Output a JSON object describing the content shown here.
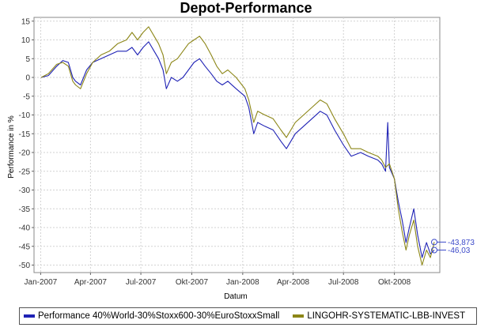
{
  "chart_data": {
    "type": "line",
    "title": "Depot-Performance",
    "xlabel": "Datum",
    "ylabel": "Performance in %",
    "x_tick_labels": [
      "Jan-2007",
      "Apr-2007",
      "Jul-2007",
      "Okt-2007",
      "Jan-2008",
      "Apr-2008",
      "Jul-2008",
      "Okt-2008"
    ],
    "y_ticks": [
      15,
      10,
      5,
      0,
      -5,
      -10,
      -15,
      -20,
      -25,
      -30,
      -35,
      -40,
      -45,
      -50
    ],
    "ylim": [
      -52,
      16
    ],
    "grid": true,
    "legend_position": "bottom",
    "series": [
      {
        "name": "Performance 40%World-30%Stoxx600-30%EuroStoxxSmall",
        "color": "#1f22b5",
        "end_label": "-46,03",
        "points": [
          [
            "2007-01-02",
            0
          ],
          [
            "2007-01-15",
            0.5
          ],
          [
            "2007-01-30",
            3
          ],
          [
            "2007-02-10",
            4.5
          ],
          [
            "2007-02-20",
            4
          ],
          [
            "2007-02-28",
            0
          ],
          [
            "2007-03-05",
            -1
          ],
          [
            "2007-03-14",
            -2
          ],
          [
            "2007-03-25",
            2
          ],
          [
            "2007-04-05",
            4
          ],
          [
            "2007-04-20",
            5
          ],
          [
            "2007-05-05",
            6
          ],
          [
            "2007-05-20",
            7
          ],
          [
            "2007-06-05",
            7
          ],
          [
            "2007-06-15",
            8
          ],
          [
            "2007-06-25",
            6
          ],
          [
            "2007-07-05",
            8
          ],
          [
            "2007-07-15",
            9.5
          ],
          [
            "2007-07-25",
            7
          ],
          [
            "2007-08-02",
            5
          ],
          [
            "2007-08-10",
            2
          ],
          [
            "2007-08-16",
            -3
          ],
          [
            "2007-08-25",
            0
          ],
          [
            "2007-09-05",
            -1
          ],
          [
            "2007-09-15",
            0
          ],
          [
            "2007-09-25",
            2
          ],
          [
            "2007-10-05",
            4
          ],
          [
            "2007-10-15",
            5
          ],
          [
            "2007-10-25",
            3
          ],
          [
            "2007-11-05",
            1
          ],
          [
            "2007-11-15",
            -1
          ],
          [
            "2007-11-25",
            -2
          ],
          [
            "2007-12-05",
            -1
          ],
          [
            "2007-12-20",
            -3
          ],
          [
            "2008-01-05",
            -5
          ],
          [
            "2008-01-12",
            -8
          ],
          [
            "2008-01-21",
            -15
          ],
          [
            "2008-01-28",
            -12
          ],
          [
            "2008-02-10",
            -13
          ],
          [
            "2008-02-25",
            -14
          ],
          [
            "2008-03-10",
            -17
          ],
          [
            "2008-03-20",
            -19
          ],
          [
            "2008-04-05",
            -15
          ],
          [
            "2008-04-20",
            -13
          ],
          [
            "2008-05-05",
            -11
          ],
          [
            "2008-05-20",
            -9
          ],
          [
            "2008-06-01",
            -10
          ],
          [
            "2008-06-15",
            -14
          ],
          [
            "2008-07-01",
            -18
          ],
          [
            "2008-07-15",
            -21
          ],
          [
            "2008-08-01",
            -20
          ],
          [
            "2008-08-15",
            -21
          ],
          [
            "2008-09-01",
            -22
          ],
          [
            "2008-09-08",
            -23
          ],
          [
            "2008-09-15",
            -25
          ],
          [
            "2008-09-19",
            -12
          ],
          [
            "2008-09-22",
            -24
          ],
          [
            "2008-10-01",
            -27
          ],
          [
            "2008-10-08",
            -33
          ],
          [
            "2008-10-15",
            -38
          ],
          [
            "2008-10-22",
            -44
          ],
          [
            "2008-10-28",
            -40
          ],
          [
            "2008-11-05",
            -35
          ],
          [
            "2008-11-12",
            -42
          ],
          [
            "2008-11-20",
            -48
          ],
          [
            "2008-11-28",
            -44
          ],
          [
            "2008-12-05",
            -47
          ],
          [
            "2008-12-12",
            -46
          ]
        ]
      },
      {
        "name": "LINGOHR-SYSTEMATIC-LBB-INVEST",
        "color": "#8c8617",
        "end_label": "-43,873",
        "points": [
          [
            "2007-01-02",
            0
          ],
          [
            "2007-01-15",
            1
          ],
          [
            "2007-01-30",
            3.5
          ],
          [
            "2007-02-10",
            4
          ],
          [
            "2007-02-20",
            3
          ],
          [
            "2007-02-28",
            -1
          ],
          [
            "2007-03-05",
            -2
          ],
          [
            "2007-03-14",
            -3
          ],
          [
            "2007-03-25",
            1
          ],
          [
            "2007-04-05",
            4
          ],
          [
            "2007-04-20",
            6
          ],
          [
            "2007-05-05",
            7
          ],
          [
            "2007-05-20",
            9
          ],
          [
            "2007-06-05",
            10
          ],
          [
            "2007-06-15",
            12
          ],
          [
            "2007-06-25",
            10
          ],
          [
            "2007-07-05",
            12
          ],
          [
            "2007-07-15",
            13.5
          ],
          [
            "2007-07-25",
            11
          ],
          [
            "2007-08-02",
            9
          ],
          [
            "2007-08-10",
            6
          ],
          [
            "2007-08-16",
            1
          ],
          [
            "2007-08-25",
            4
          ],
          [
            "2007-09-05",
            5
          ],
          [
            "2007-09-15",
            7
          ],
          [
            "2007-09-25",
            9
          ],
          [
            "2007-10-05",
            10
          ],
          [
            "2007-10-15",
            11
          ],
          [
            "2007-10-25",
            9
          ],
          [
            "2007-11-05",
            6
          ],
          [
            "2007-11-15",
            3
          ],
          [
            "2007-11-25",
            1
          ],
          [
            "2007-12-05",
            2
          ],
          [
            "2007-12-20",
            0
          ],
          [
            "2008-01-05",
            -3
          ],
          [
            "2008-01-12",
            -6
          ],
          [
            "2008-01-21",
            -12
          ],
          [
            "2008-01-28",
            -9
          ],
          [
            "2008-02-10",
            -10
          ],
          [
            "2008-02-25",
            -11
          ],
          [
            "2008-03-10",
            -14
          ],
          [
            "2008-03-20",
            -16
          ],
          [
            "2008-04-05",
            -12
          ],
          [
            "2008-04-20",
            -10
          ],
          [
            "2008-05-05",
            -8
          ],
          [
            "2008-05-20",
            -6
          ],
          [
            "2008-06-01",
            -7
          ],
          [
            "2008-06-15",
            -11
          ],
          [
            "2008-07-01",
            -15
          ],
          [
            "2008-07-15",
            -19
          ],
          [
            "2008-08-01",
            -19
          ],
          [
            "2008-08-15",
            -20
          ],
          [
            "2008-09-01",
            -21
          ],
          [
            "2008-09-08",
            -22
          ],
          [
            "2008-09-15",
            -24
          ],
          [
            "2008-09-22",
            -23
          ],
          [
            "2008-10-01",
            -27
          ],
          [
            "2008-10-08",
            -35
          ],
          [
            "2008-10-15",
            -41
          ],
          [
            "2008-10-22",
            -46
          ],
          [
            "2008-10-28",
            -42
          ],
          [
            "2008-11-05",
            -38
          ],
          [
            "2008-11-12",
            -45
          ],
          [
            "2008-11-20",
            -50
          ],
          [
            "2008-11-28",
            -46
          ],
          [
            "2008-12-05",
            -48
          ],
          [
            "2008-12-12",
            -43.873
          ]
        ]
      }
    ]
  }
}
